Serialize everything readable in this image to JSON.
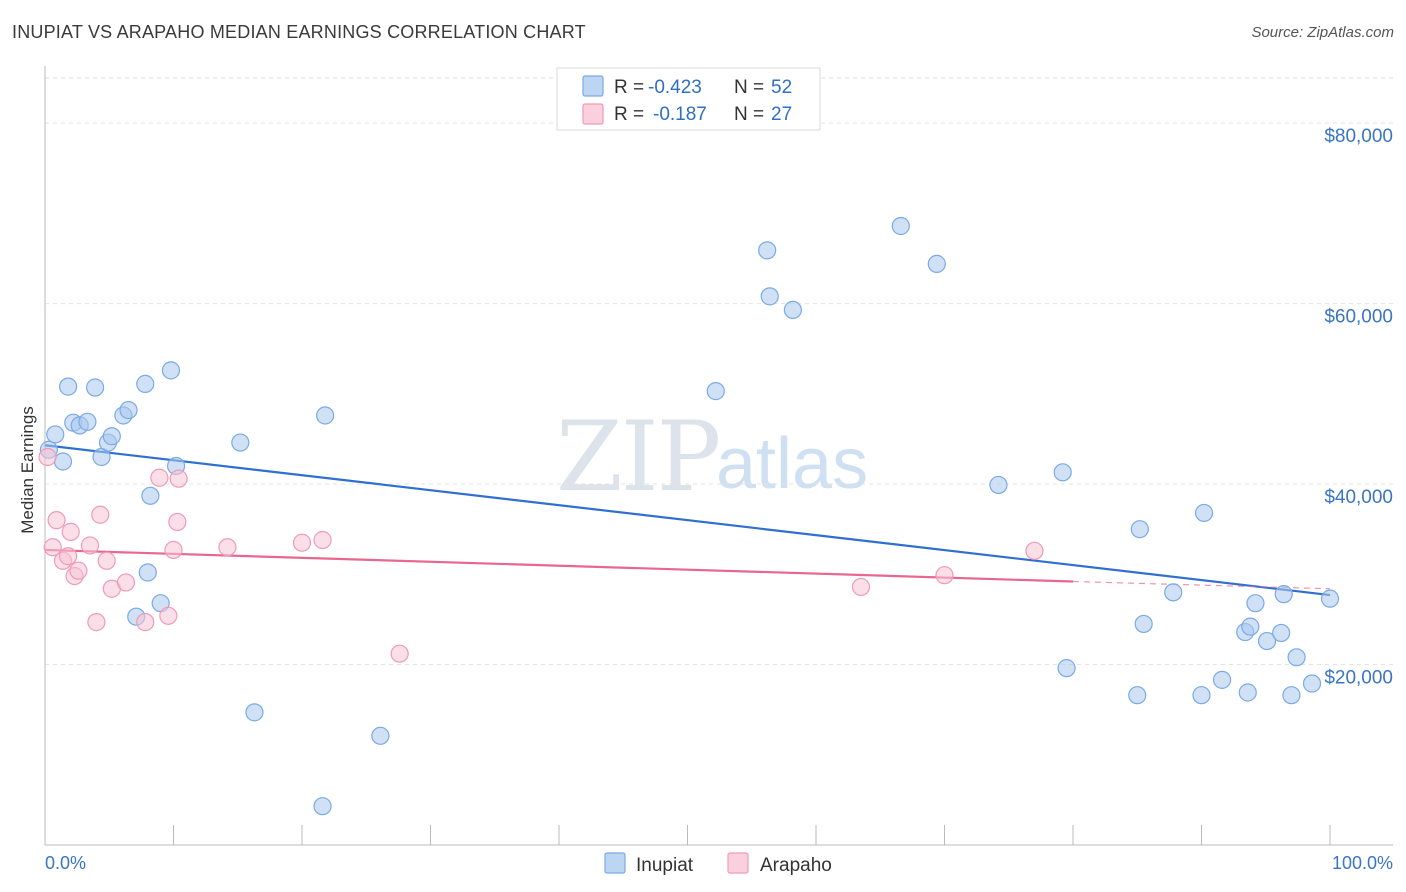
{
  "header": {
    "title": "INUPIAT VS ARAPAHO MEDIAN EARNINGS CORRELATION CHART",
    "source": "Source: ZipAtlas.com"
  },
  "watermark": {
    "zip": "ZIP",
    "atlas": "atlas"
  },
  "legend": {
    "rows": [
      {
        "r_label": "R =",
        "r_value": "-0.423",
        "n_label": "N =",
        "n_value": "52"
      },
      {
        "r_label": "R =",
        "r_value": "-0.187",
        "n_label": "N =",
        "n_value": "27"
      }
    ]
  },
  "chart_data": {
    "type": "scatter",
    "title": "INUPIAT VS ARAPAHO MEDIAN EARNINGS CORRELATION CHART",
    "xlabel": "",
    "ylabel": "Median Earnings",
    "xlim": [
      0,
      100
    ],
    "ylim": [
      0,
      85000
    ],
    "x_tick_labels": [
      "0.0%",
      "100.0%"
    ],
    "y_ticks": [
      20000,
      40000,
      60000,
      80000
    ],
    "y_tick_labels": [
      "$20,000",
      "$40,000",
      "$60,000",
      "$80,000"
    ],
    "grid": true,
    "legend_position": "top-center",
    "series": [
      {
        "name": "Inupiat",
        "color": "#a9c8ef",
        "stroke": "#7aaae6",
        "line_color": "#2f6fd0",
        "R": -0.423,
        "N": 52,
        "trend": {
          "x": [
            0,
            100
          ],
          "y": [
            44300,
            27700
          ],
          "dashed_to": null
        },
        "points": [
          [
            0.3,
            43800
          ],
          [
            0.8,
            45500
          ],
          [
            1.4,
            42500
          ],
          [
            1.8,
            50800
          ],
          [
            2.2,
            46800
          ],
          [
            2.7,
            46500
          ],
          [
            3.3,
            46900
          ],
          [
            3.9,
            50700
          ],
          [
            4.4,
            43000
          ],
          [
            4.9,
            44600
          ],
          [
            5.2,
            45300
          ],
          [
            6.1,
            47600
          ],
          [
            6.5,
            48200
          ],
          [
            7.1,
            25300
          ],
          [
            7.8,
            51100
          ],
          [
            8.0,
            30200
          ],
          [
            8.2,
            38700
          ],
          [
            9.0,
            26800
          ],
          [
            9.8,
            52600
          ],
          [
            10.2,
            42000
          ],
          [
            15.2,
            44600
          ],
          [
            16.3,
            14700
          ],
          [
            21.6,
            4300
          ],
          [
            21.8,
            47600
          ],
          [
            26.1,
            12100
          ],
          [
            52.2,
            50300
          ],
          [
            56.2,
            65900
          ],
          [
            56.4,
            60800
          ],
          [
            58.2,
            59300
          ],
          [
            66.6,
            68600
          ],
          [
            69.4,
            64400
          ],
          [
            74.2,
            39900
          ],
          [
            79.2,
            41300
          ],
          [
            79.5,
            19600
          ],
          [
            85.0,
            16600
          ],
          [
            85.2,
            35000
          ],
          [
            85.5,
            24500
          ],
          [
            87.8,
            28000
          ],
          [
            90.0,
            16600
          ],
          [
            90.2,
            36800
          ],
          [
            91.6,
            18300
          ],
          [
            93.4,
            23600
          ],
          [
            93.6,
            16900
          ],
          [
            93.8,
            24200
          ],
          [
            94.2,
            26800
          ],
          [
            95.1,
            22600
          ],
          [
            96.2,
            23500
          ],
          [
            96.4,
            27800
          ],
          [
            97.0,
            16600
          ],
          [
            97.4,
            20800
          ],
          [
            98.6,
            17900
          ],
          [
            100.0,
            27300
          ]
        ]
      },
      {
        "name": "Arapaho",
        "color": "#f7c5d6",
        "stroke": "#f09ab8",
        "line_color": "#e8678e",
        "R": -0.187,
        "N": 27,
        "trend": {
          "x": [
            0,
            80
          ],
          "y": [
            32700,
            29200
          ],
          "dashed_to": [
            100,
            28400
          ]
        },
        "points": [
          [
            0.2,
            43000
          ],
          [
            0.6,
            33000
          ],
          [
            0.9,
            36000
          ],
          [
            1.4,
            31500
          ],
          [
            1.8,
            32000
          ],
          [
            2.0,
            34700
          ],
          [
            2.3,
            29800
          ],
          [
            2.6,
            30400
          ],
          [
            3.5,
            33200
          ],
          [
            4.0,
            24700
          ],
          [
            4.3,
            36600
          ],
          [
            4.8,
            31500
          ],
          [
            5.2,
            28400
          ],
          [
            6.3,
            29100
          ],
          [
            7.8,
            24700
          ],
          [
            8.9,
            40700
          ],
          [
            9.6,
            25400
          ],
          [
            10.0,
            32700
          ],
          [
            10.3,
            35800
          ],
          [
            10.4,
            40600
          ],
          [
            14.2,
            33000
          ],
          [
            20.0,
            33500
          ],
          [
            21.6,
            33800
          ],
          [
            27.6,
            21200
          ],
          [
            63.5,
            28600
          ],
          [
            70.0,
            29900
          ],
          [
            77.0,
            32600
          ]
        ]
      }
    ]
  }
}
